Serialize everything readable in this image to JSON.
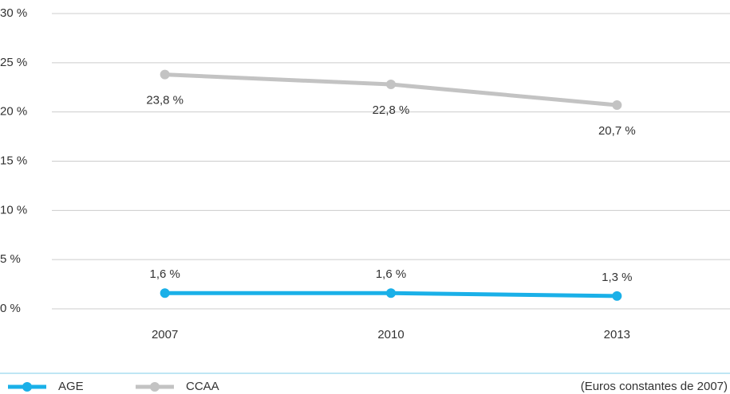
{
  "chart_data": {
    "type": "line",
    "categories": [
      "2007",
      "2010",
      "2013"
    ],
    "series": [
      {
        "name": "AGE",
        "color": "#1ab0e8",
        "values": [
          1.6,
          1.6,
          1.3
        ],
        "value_labels": [
          "1,6 %",
          "1,6 %",
          "1,3 %"
        ]
      },
      {
        "name": "CCAA",
        "color": "#c3c3c3",
        "values": [
          23.8,
          22.8,
          20.7
        ],
        "value_labels": [
          "23,8 %",
          "22,8 %",
          "20,7 %"
        ]
      }
    ],
    "ylim": [
      0,
      30
    ],
    "yticks": [
      {
        "value": 0,
        "label": "0 %"
      },
      {
        "value": 5,
        "label": "5 %"
      },
      {
        "value": 10,
        "label": "10 %"
      },
      {
        "value": 15,
        "label": "15 %"
      },
      {
        "value": 20,
        "label": "20 %"
      },
      {
        "value": 25,
        "label": "25 %"
      },
      {
        "value": 30,
        "label": "30 %"
      }
    ],
    "grid": true,
    "legend": "bottom-left",
    "note": "(Euros constantes de 2007)"
  }
}
